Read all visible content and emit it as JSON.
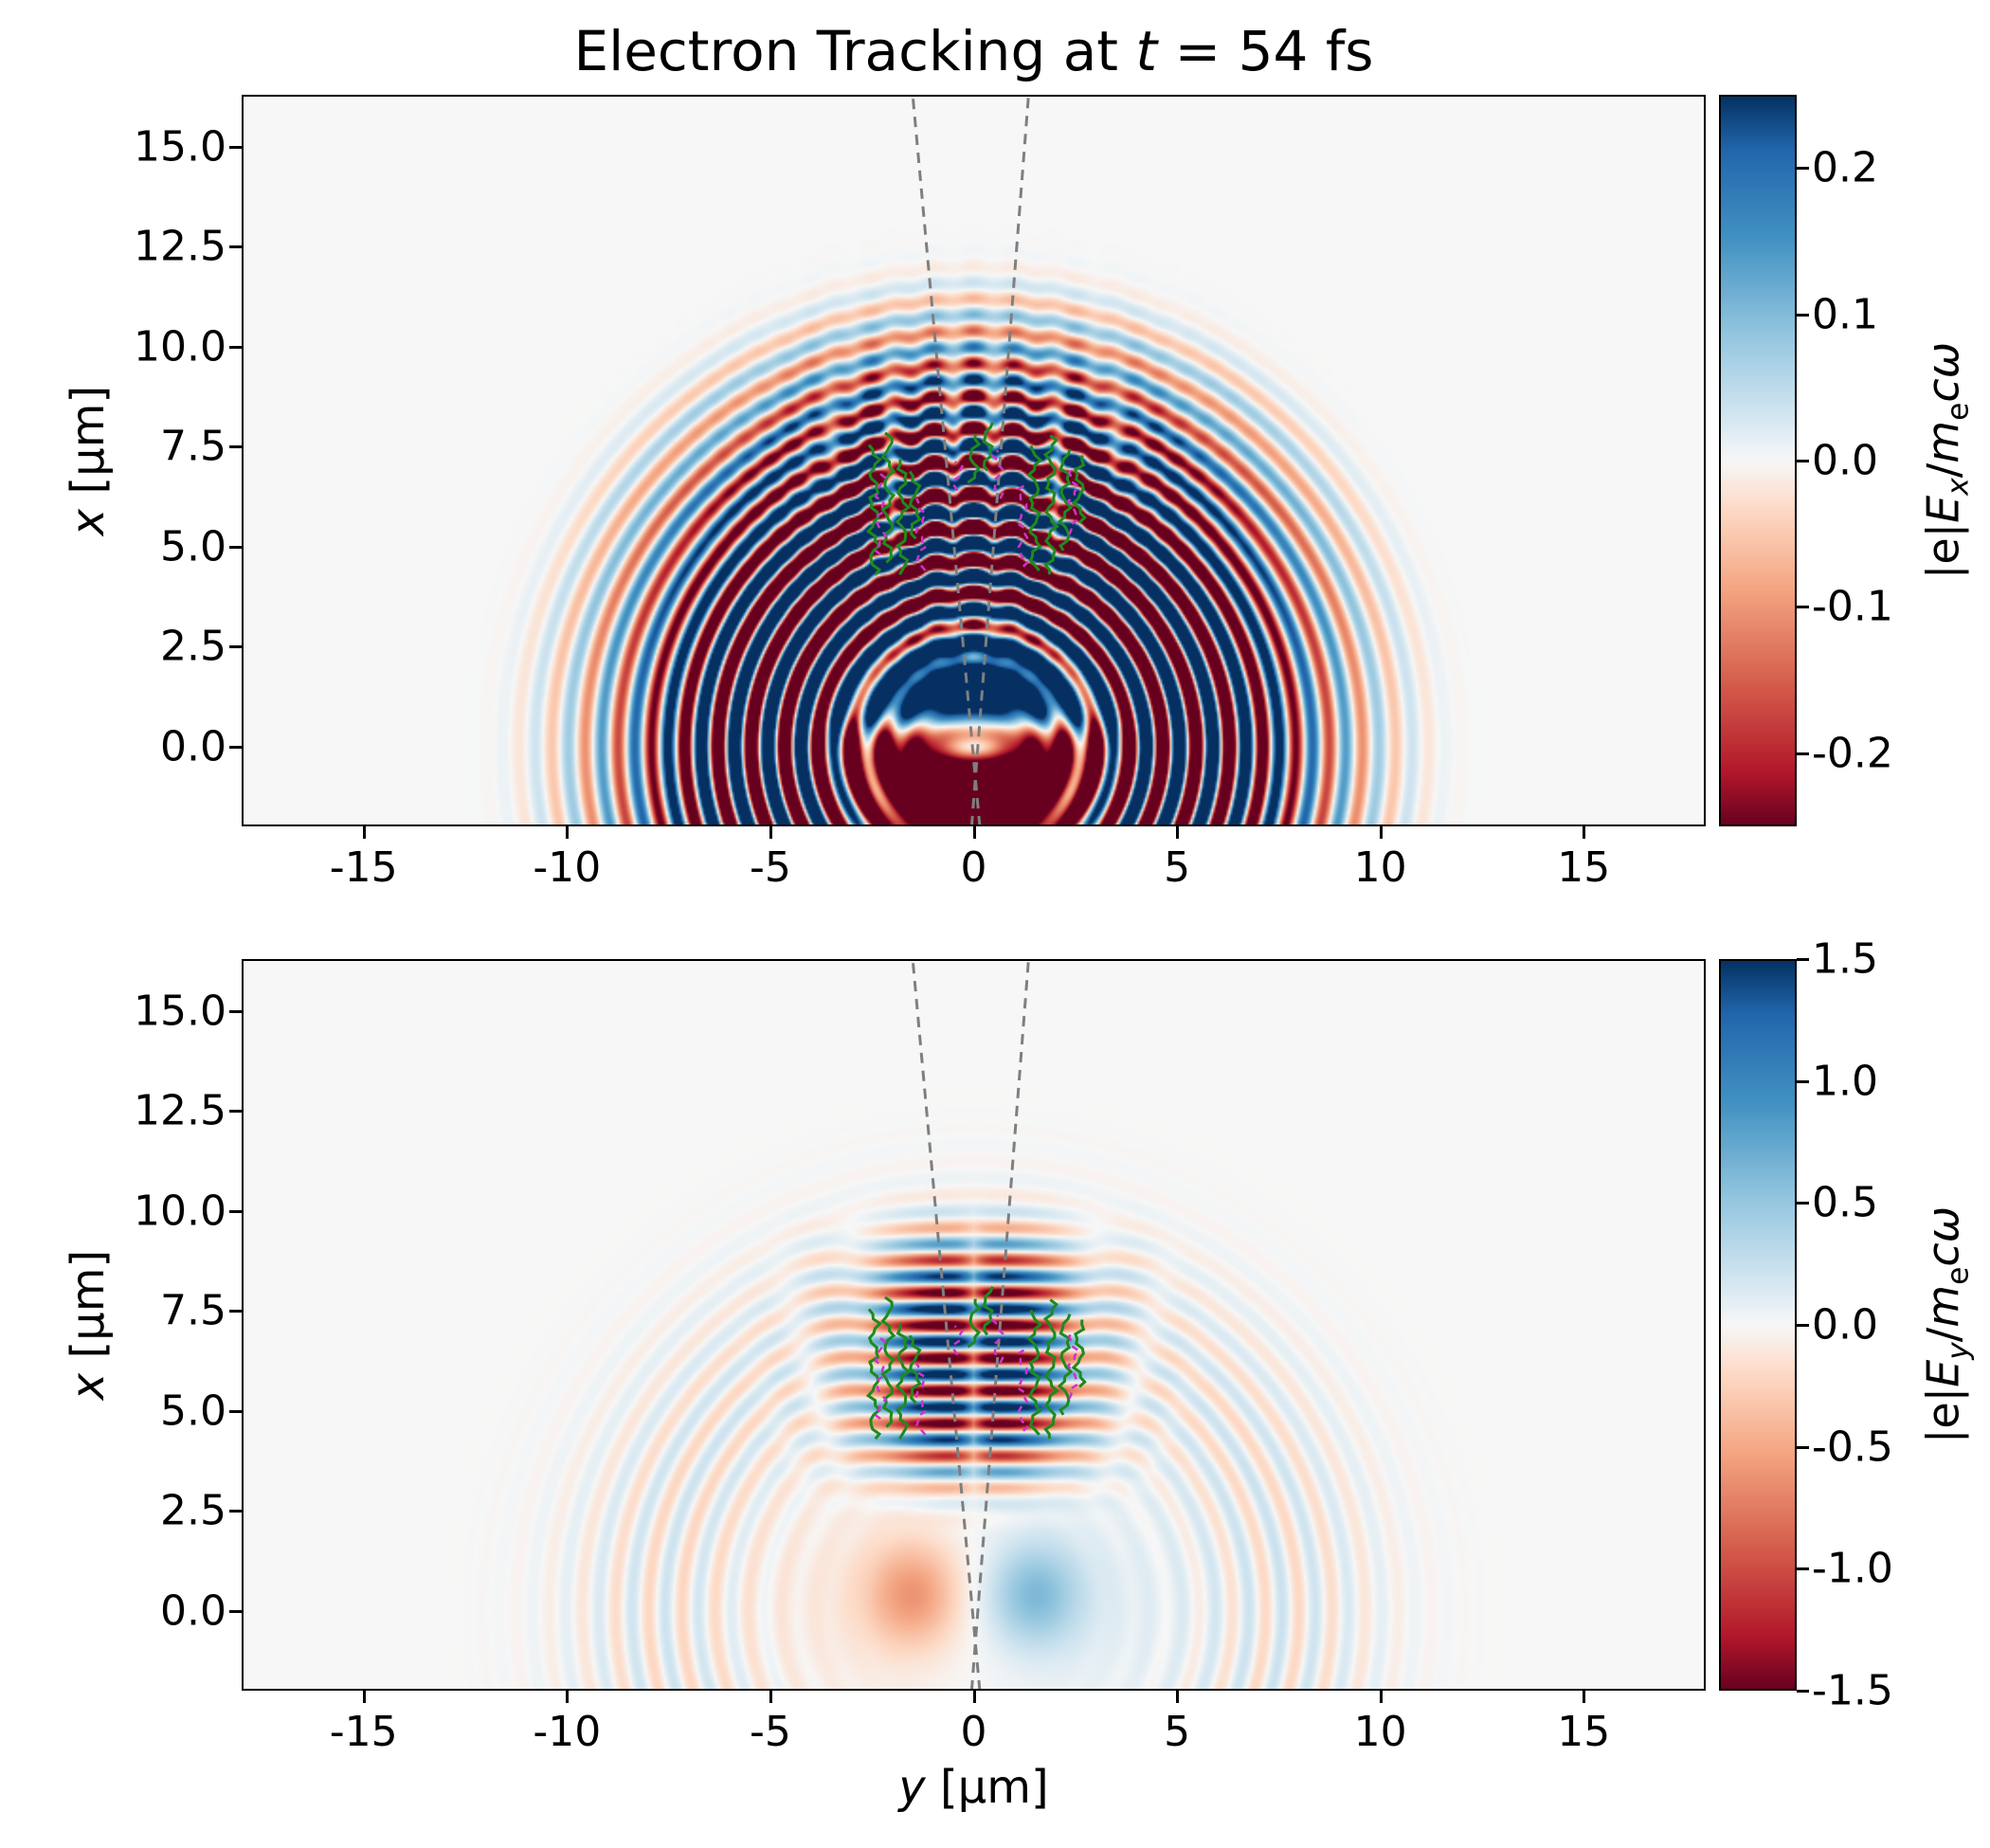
{
  "title": {
    "pre": "Electron Tracking at ",
    "var": "t",
    "post": " = 54 fs"
  },
  "xlabel": {
    "var": "y",
    "unit": " [µm]"
  },
  "colors": {
    "positive_extreme": "#053061",
    "negative_extreme": "#67001f",
    "midpoint": "#f7f7f7",
    "cone_line": "#7f7f7f",
    "track_green": "#1e8a1e",
    "track_magenta": "#cc33cc",
    "axis": "#000000"
  },
  "chart_data": {
    "type": "heatmap",
    "colormap": "RdBu",
    "title": "Electron Tracking at t = 54 fs",
    "panels": [
      {
        "id": "ex",
        "field": "Ex",
        "ylabel": {
          "var": "x",
          "unit": " [µm]"
        },
        "xlim": [
          -18,
          18
        ],
        "ylim": [
          -2,
          16.3
        ],
        "xticks": {
          "values": [
            -15,
            -10,
            -5,
            0,
            5,
            10,
            15
          ],
          "labels": [
            "-15",
            "-10",
            "-5",
            "0",
            "5",
            "10",
            "15"
          ]
        },
        "yticks": {
          "values": [
            15,
            12.5,
            10,
            7.5,
            5,
            2.5,
            0
          ],
          "labels": [
            "15.0",
            "12.5",
            "10.0",
            "7.5",
            "5.0",
            "2.5",
            "0.0"
          ]
        },
        "colorbar": {
          "vmin": -0.25,
          "vmax": 0.25,
          "ticks": {
            "values": [
              0.2,
              0.1,
              0,
              -0.1,
              -0.2
            ],
            "labels": [
              "0.2",
              "0.1",
              "0.0",
              "-0.1",
              "-0.2"
            ]
          },
          "label": {
            "p1": "|e|",
            "p2": "E",
            "p3": "x",
            "p4": "/",
            "p5": "m",
            "p6": "e",
            "p7": "cω"
          }
        },
        "description": "Transverse field Ex: concentric half-circular wavefronts radiating from a source near (y=0, x=0); saturated dark-red lobe below the source and dark-blue lobe just above it; checkered interference region near the axis for x between 3 and 9 µm."
      },
      {
        "id": "ey",
        "field": "Ey",
        "ylabel": {
          "var": "x",
          "unit": " [µm]"
        },
        "xlim": [
          -18,
          18
        ],
        "ylim": [
          -2,
          16.3
        ],
        "xticks": {
          "values": [
            -15,
            -10,
            -5,
            0,
            5,
            10,
            15
          ],
          "labels": [
            "-15",
            "-10",
            "-5",
            "0",
            "5",
            "10",
            "15"
          ]
        },
        "yticks": {
          "values": [
            15,
            12.5,
            10,
            7.5,
            5,
            2.5,
            0
          ],
          "labels": [
            "15.0",
            "12.5",
            "10.0",
            "7.5",
            "5.0",
            "2.5",
            "0.0"
          ]
        },
        "colorbar": {
          "vmin": -1.5,
          "vmax": 1.5,
          "ticks": {
            "values": [
              1.5,
              1,
              0.5,
              0,
              -0.5,
              -1,
              -1.5
            ],
            "labels": [
              "1.5",
              "1.0",
              "0.5",
              "0.0",
              "-0.5",
              "-1.0",
              "-1.5"
            ]
          },
          "label": {
            "p1": "|e|",
            "p2": "E",
            "p3": "y",
            "p4": "/",
            "p5": "m",
            "p6": "e",
            "p7": "cω"
          }
        },
        "description": "Longitudinal field Ey: horizontal standing-wave stripes in a band |y|<3.5 µm for x between 3.5 and 9 µm, with a faint outer halo and a red/blue dipole pair near (y=∓1.5, x=0.5)."
      }
    ],
    "cone_lines": [
      {
        "from": {
          "x": -2,
          "y": 0.15
        },
        "to": {
          "x": 16.3,
          "y": -1.5
        }
      },
      {
        "from": {
          "x": -2,
          "y": -0.05
        },
        "to": {
          "x": 16.3,
          "y": 1.35
        }
      }
    ],
    "tracks": {
      "green": [
        [
          -2.45,
          4.3,
          7.6
        ],
        [
          -2.1,
          4.6,
          7.9
        ],
        [
          -1.75,
          4.3,
          7.2
        ],
        [
          -1.45,
          5.2,
          7.0
        ],
        [
          0.0,
          6.6,
          7.9
        ],
        [
          0.35,
          6.9,
          8.15
        ],
        [
          1.5,
          4.4,
          7.6
        ],
        [
          1.9,
          4.3,
          7.8
        ],
        [
          2.25,
          4.9,
          7.5
        ],
        [
          2.6,
          5.6,
          7.3
        ]
      ],
      "magenta": [
        [
          -2.3,
          4.8,
          6.9
        ],
        [
          -1.3,
          4.4,
          6.3
        ],
        [
          0.6,
          6.2,
          7.5
        ],
        [
          1.2,
          4.5,
          6.6
        ],
        [
          2.45,
          5.3,
          7.0
        ],
        [
          -0.4,
          6.4,
          7.2
        ]
      ]
    },
    "field_model": {
      "wavelength_um": 0.82,
      "ex": {
        "ring_radii": [
          4.3,
          6.8,
          9.2,
          10.8
        ],
        "ring_amps": [
          0.5,
          0.38,
          0.15,
          0.05
        ],
        "ring_widths": [
          2.0,
          1.8,
          1.3,
          1.0
        ],
        "core_amp": 0.34,
        "core_rx": 0.85,
        "core_ry": 0.7,
        "core_r": 2.4,
        "interf_center": 6.2,
        "interf_sx": 2.7,
        "interf_sy": 3.4,
        "interf_amp": 0.5,
        "fade_angle": 1.95
      },
      "ey": {
        "stripe_center": 6.3,
        "stripe_sx": 2.9,
        "stripe_sy": 2.4,
        "stripe_amp": 2.2,
        "blob_x": 0.4,
        "blob_y": 1.5,
        "blob_amp": 0.55,
        "halo_r": 7.6,
        "halo_amp": 0.22
      }
    }
  }
}
